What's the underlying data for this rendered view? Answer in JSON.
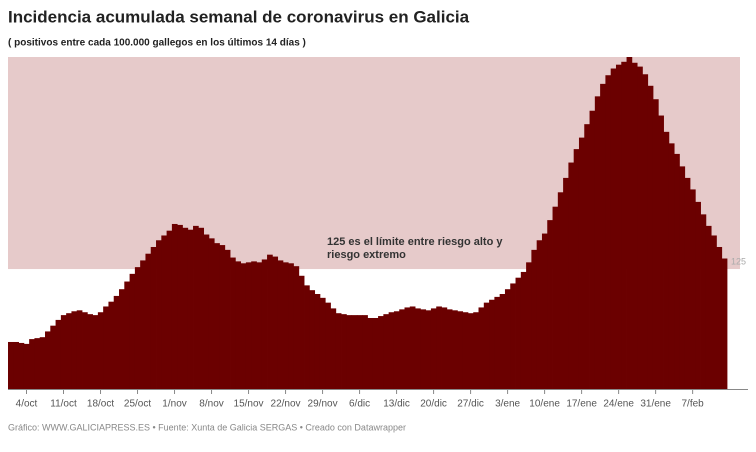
{
  "chart_data": {
    "type": "bar",
    "title": "Incidencia acumulada semanal de coronavirus en Galicia",
    "subtitle": "( positivos entre cada 100.000 gallegos en los últimos 14 días )",
    "footer": "Gráfico: WWW.GALICIAPRESS.ES • Fuente: Xunta de Galicia SERGAS • Creado con Datawrapper",
    "annotation": [
      "125 es el límite entre riesgo alto y",
      "riesgo extremo"
    ],
    "threshold": 125,
    "color": "#6b0000",
    "band_color": "#e6caca",
    "ylim": [
      0,
      346
    ],
    "categories": [
      null,
      null,
      null,
      "4/oct",
      null,
      null,
      null,
      null,
      null,
      null,
      "11/oct",
      null,
      null,
      null,
      null,
      null,
      null,
      "18/oct",
      null,
      null,
      null,
      null,
      null,
      null,
      "25/oct",
      null,
      null,
      null,
      null,
      null,
      null,
      "1/nov",
      null,
      null,
      null,
      null,
      null,
      null,
      "8/nov",
      null,
      null,
      null,
      null,
      null,
      null,
      "15/nov",
      null,
      null,
      null,
      null,
      null,
      null,
      "22/nov",
      null,
      null,
      null,
      null,
      null,
      null,
      "29/nov",
      null,
      null,
      null,
      null,
      null,
      null,
      "6/dic",
      null,
      null,
      null,
      null,
      null,
      null,
      "13/dic",
      null,
      null,
      null,
      null,
      null,
      null,
      "20/dic",
      null,
      null,
      null,
      null,
      null,
      null,
      "27/dic",
      null,
      null,
      null,
      null,
      null,
      null,
      "3/ene",
      null,
      null,
      null,
      null,
      null,
      null,
      "10/ene",
      null,
      null,
      null,
      null,
      null,
      null,
      "17/ene",
      null,
      null,
      null,
      null,
      null,
      null,
      "24/ene",
      null,
      null,
      null,
      null,
      null,
      null,
      "31/ene",
      null,
      null,
      null,
      null,
      null,
      null,
      "7/feb",
      null,
      null,
      null,
      null,
      null,
      null
    ],
    "values": [
      49,
      49,
      48,
      47,
      52,
      53,
      54,
      60,
      66,
      72,
      77,
      79,
      81,
      82,
      80,
      78,
      77,
      80,
      86,
      91,
      97,
      104,
      112,
      120,
      127,
      134,
      141,
      148,
      155,
      160,
      165,
      172,
      171,
      168,
      166,
      170,
      168,
      161,
      157,
      152,
      150,
      145,
      137,
      133,
      131,
      132,
      133,
      132,
      135,
      140,
      138,
      134,
      132,
      131,
      128,
      118,
      108,
      103,
      99,
      95,
      90,
      84,
      79,
      78,
      77,
      77,
      77,
      77,
      74,
      74,
      76,
      78,
      80,
      81,
      83,
      85,
      86,
      84,
      83,
      82,
      84,
      86,
      85,
      83,
      82,
      81,
      80,
      79,
      80,
      85,
      90,
      93,
      96,
      99,
      104,
      110,
      116,
      122,
      132,
      145,
      155,
      162,
      176,
      190,
      205,
      220,
      236,
      250,
      262,
      276,
      290,
      305,
      318,
      327,
      334,
      338,
      341,
      346,
      340,
      336,
      328,
      316,
      302,
      285,
      268,
      256,
      245,
      232,
      220,
      208,
      195,
      182,
      170,
      160,
      148,
      136
    ]
  }
}
